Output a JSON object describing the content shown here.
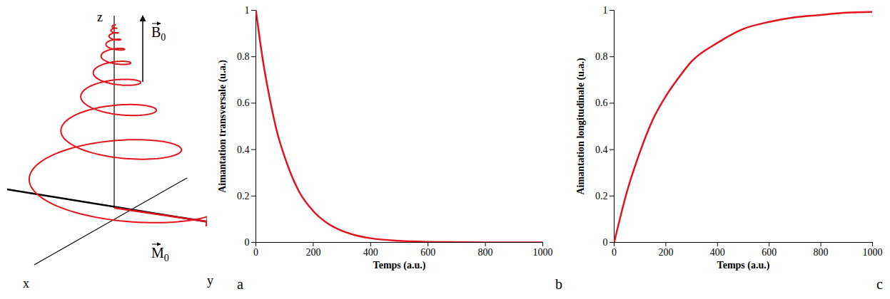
{
  "diagram": {
    "letter": "a",
    "axes": {
      "vertical": "z",
      "horizontal_left": "x",
      "horizontal_right": "y"
    },
    "field": {
      "symbol": "B",
      "subscript": "0"
    },
    "magnetization": {
      "symbol": "M",
      "subscript": "0"
    }
  },
  "chart_data": [
    {
      "panel": "b",
      "type": "line",
      "color": "#e3131b",
      "xlabel": "Temps (a.u.)",
      "ylabel": "Aimantation transversale (u.a.)",
      "x": [
        0,
        25,
        50,
        75,
        100,
        150,
        200,
        250,
        300,
        350,
        400,
        500,
        600,
        700,
        800,
        900,
        1000
      ],
      "values": [
        1,
        0.78,
        0.61,
        0.47,
        0.37,
        0.22,
        0.135,
        0.082,
        0.05,
        0.03,
        0.018,
        0.007,
        0.0025,
        0.001,
        0,
        0,
        0
      ],
      "xlim": [
        0,
        1000
      ],
      "ylim": [
        0,
        1
      ],
      "xticks": [
        0,
        200,
        400,
        600,
        800,
        1000
      ],
      "yticks": [
        0,
        0.2,
        0.4,
        0.6,
        0.8,
        1
      ],
      "grid": false
    },
    {
      "panel": "c",
      "type": "line",
      "color": "#e3131b",
      "xlabel": "Temps (a.u.)",
      "ylabel": "Aimantation longitudinale (u.a.)",
      "x": [
        0,
        50,
        100,
        150,
        200,
        250,
        300,
        400,
        500,
        600,
        700,
        800,
        900,
        1000
      ],
      "values": [
        0,
        0.22,
        0.39,
        0.53,
        0.63,
        0.71,
        0.78,
        0.86,
        0.92,
        0.95,
        0.97,
        0.98,
        0.99,
        0.993
      ],
      "xlim": [
        0,
        1000
      ],
      "ylim": [
        0,
        1
      ],
      "xticks": [
        0,
        200,
        400,
        600,
        800,
        1000
      ],
      "yticks": [
        0,
        0.2,
        0.4,
        0.6,
        0.8,
        1
      ],
      "grid": false
    }
  ]
}
